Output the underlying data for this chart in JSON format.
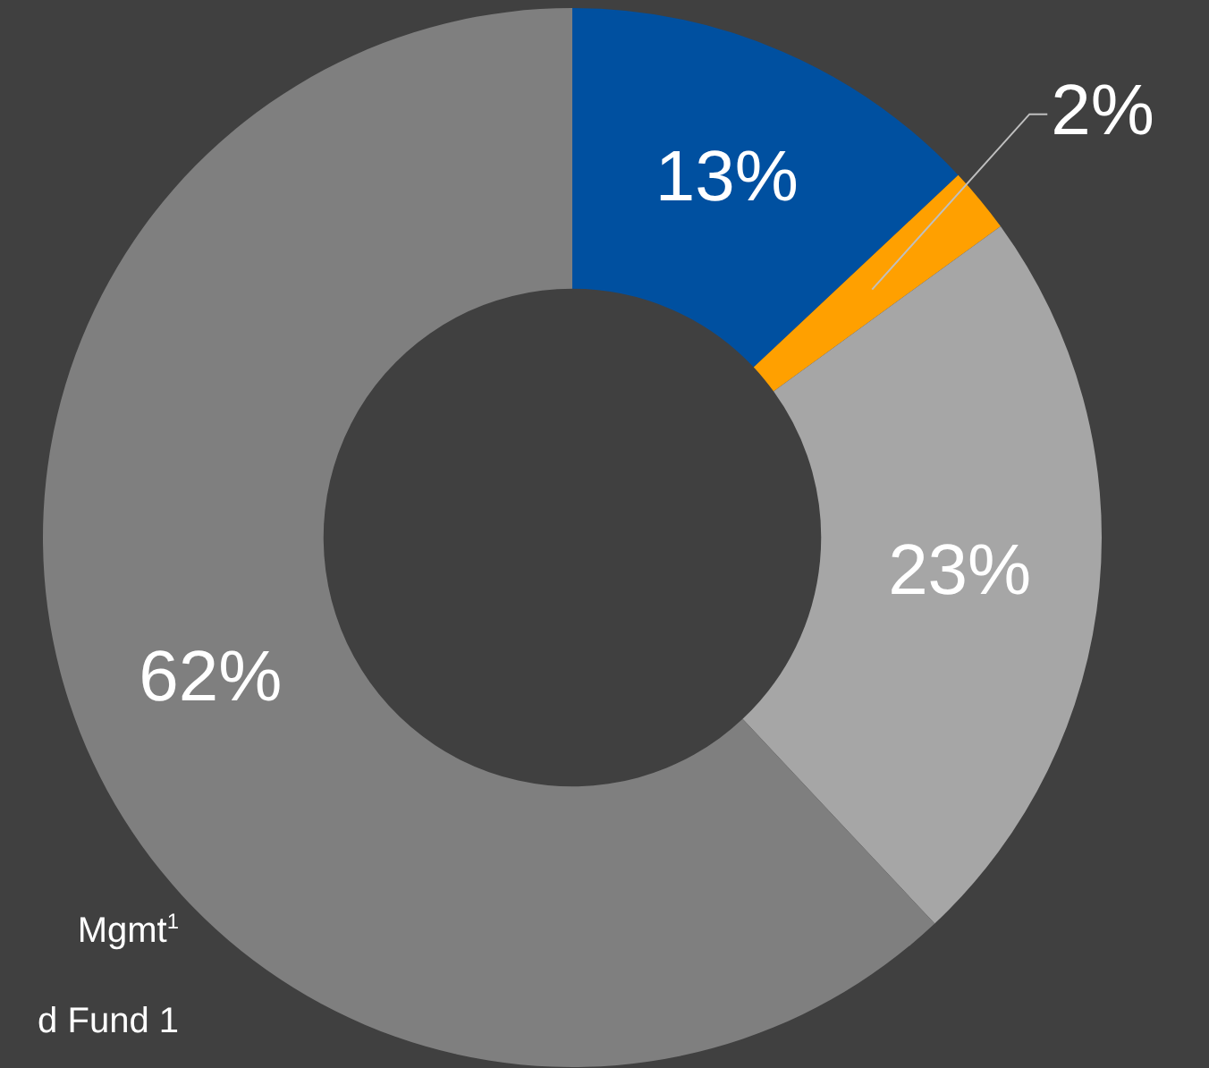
{
  "chart_data": {
    "type": "donut",
    "categories": [
      null,
      null,
      null,
      null
    ],
    "values": [
      13,
      2,
      23,
      62
    ],
    "colors": [
      "#0050a0",
      "#ffa000",
      "#a6a6a6",
      "#7f7f7f"
    ],
    "data_labels": true,
    "value_labels": [
      "13%",
      "2%",
      "23%",
      "62%"
    ],
    "legend": false,
    "annotations": [
      "Mgmt$^{1}$",
      "d Fund 1"
    ]
  }
}
